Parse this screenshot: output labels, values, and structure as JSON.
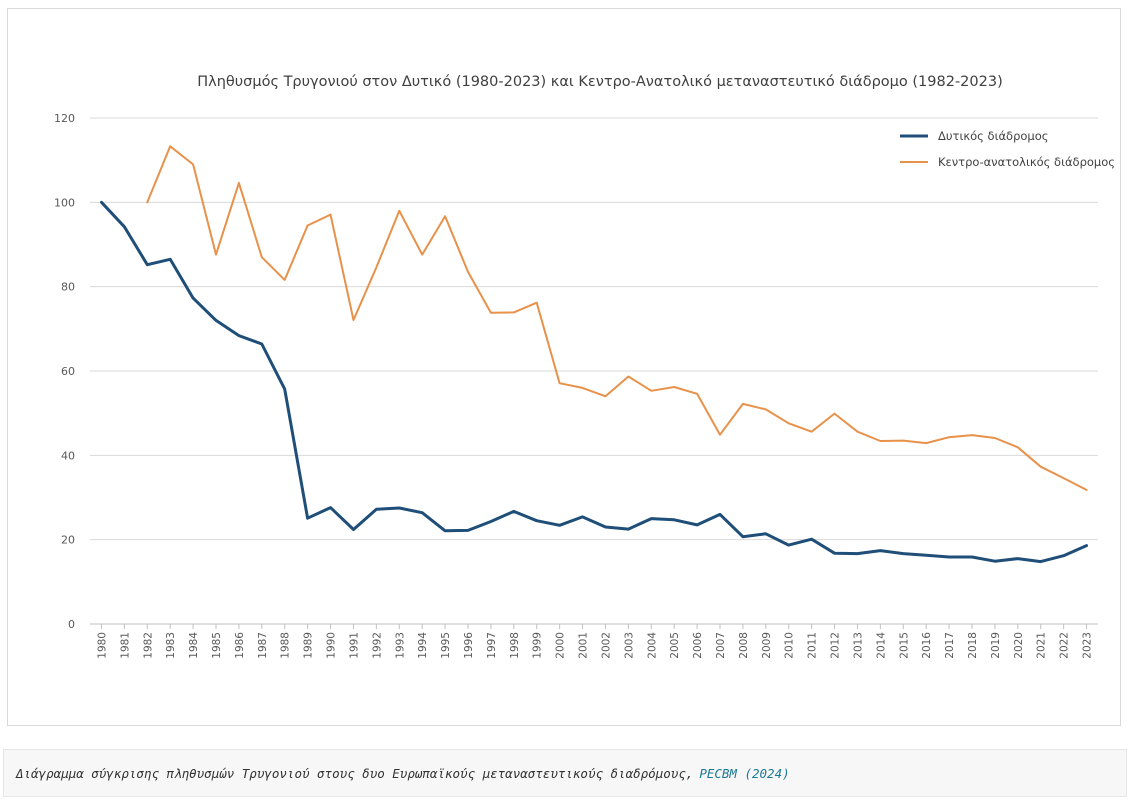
{
  "chart_data": {
    "type": "line",
    "title": "Πληθυσμός Τρυγονιού στον Δυτικό (1980-2023) και Κεντρο-Ανατολικό μεταναστευτικό διάδρομο (1982-2023)",
    "xlabel": "",
    "ylabel": "",
    "ylim": [
      0,
      120
    ],
    "yticks": [
      "0",
      "20",
      "40",
      "60",
      "80",
      "100",
      "120"
    ],
    "grid": true,
    "legend_position": "top-right",
    "categories": [
      "1980",
      "1981",
      "1982",
      "1983",
      "1984",
      "1985",
      "1986",
      "1987",
      "1988",
      "1989",
      "1990",
      "1991",
      "1992",
      "1993",
      "1994",
      "1995",
      "1996",
      "1997",
      "1998",
      "1999",
      "2000",
      "2001",
      "2002",
      "2003",
      "2004",
      "2005",
      "2006",
      "2007",
      "2008",
      "2009",
      "2010",
      "2011",
      "2012",
      "2013",
      "2014",
      "2015",
      "2016",
      "2017",
      "2018",
      "2019",
      "2020",
      "2021",
      "2022",
      "2023"
    ],
    "series": [
      {
        "name": "Δυτικός διάδρομος",
        "color": "#1f4e79",
        "values": [
          100,
          94.2,
          85.2,
          86.5,
          77.3,
          72,
          68.4,
          66.4,
          55.7,
          25.1,
          27.6,
          22.4,
          27.2,
          27.5,
          26.4,
          22.1,
          22.2,
          24.3,
          26.7,
          24.5,
          23.4,
          25.4,
          23,
          22.5,
          25,
          24.7,
          23.5,
          26,
          20.7,
          21.4,
          18.7,
          20.1,
          16.8,
          16.7,
          17.4,
          16.7,
          16.3,
          15.9,
          15.9,
          14.9,
          15.5,
          14.8,
          16.2,
          18.6
        ]
      },
      {
        "name": "Κεντρο-ανατολικός διάδρομος",
        "color": "#e8914a",
        "values": [
          null,
          null,
          100,
          113.3,
          109,
          87.6,
          104.6,
          87,
          81.6,
          94.5,
          97.1,
          72.1,
          84.6,
          98,
          87.6,
          96.7,
          83.5,
          73.8,
          73.9,
          76.2,
          57.1,
          56,
          54,
          58.7,
          55.3,
          56.2,
          54.6,
          44.9,
          52.2,
          50.9,
          47.6,
          45.6,
          49.9,
          45.6,
          43.4,
          43.5,
          42.9,
          44.3,
          44.8,
          44.1,
          41.9,
          37.3,
          34.6,
          31.8
        ]
      }
    ]
  },
  "caption": {
    "text": "Διάγραμμα σύγκρισης πληθυσμών Τρυγονιού στους δυο Ευρωπαϊκούς μεταναστευτικούς διαδρόμους,",
    "source_link": "PECBM (2024)"
  }
}
